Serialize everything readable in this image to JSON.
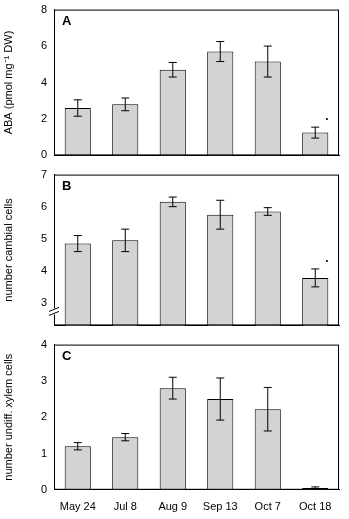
{
  "chart_data": [
    {
      "type": "bar",
      "title": "A",
      "y_label": "ABA (pmol mg⁻¹ DW)",
      "categories": [
        "May 24",
        "Jul 8",
        "Aug 9",
        "Sep 13",
        "Oct 7",
        "Oct 18"
      ],
      "values": [
        2.6,
        2.8,
        4.7,
        5.7,
        5.15,
        1.25
      ],
      "errors": [
        0.45,
        0.35,
        0.4,
        0.55,
        0.85,
        0.3
      ],
      "color": "#d3d3d3",
      "ylim": [
        0,
        8
      ],
      "yticks": [
        0,
        2,
        4,
        6,
        8
      ],
      "grid": false,
      "tick_labels": "y",
      "annotations": [
        {
          "category": "Oct 18",
          "text": "."
        }
      ]
    },
    {
      "type": "bar",
      "title": "B",
      "y_label": "number cambial cells",
      "categories": [
        "May 24",
        "Jul 8",
        "Aug 9",
        "Sep 13",
        "Oct 7",
        "Oct 18"
      ],
      "values": [
        4.85,
        4.95,
        6.15,
        5.75,
        5.85,
        3.78
      ],
      "errors": [
        0.25,
        0.35,
        0.15,
        0.45,
        0.12,
        0.28
      ],
      "color": "#d3d3d3",
      "ylim": [
        2.3,
        7
      ],
      "yticks": [
        3,
        4,
        5,
        6,
        7
      ],
      "grid": false,
      "tick_labels": "y",
      "annotations": [
        {
          "category": "Oct 18",
          "text": "."
        }
      ]
    },
    {
      "type": "bar",
      "title": "C",
      "y_label": "number undiff. xylem cells",
      "categories": [
        "May 24",
        "Jul 8",
        "Aug 9",
        "Sep 13",
        "Oct 7",
        "Oct 18"
      ],
      "values": [
        1.2,
        1.45,
        2.8,
        2.5,
        2.22,
        0.05
      ],
      "errors": [
        0.1,
        0.1,
        0.3,
        0.58,
        0.6,
        0.03
      ],
      "color": "#d3d3d3",
      "ylim": [
        0,
        4
      ],
      "yticks": [
        0,
        1,
        2,
        3,
        4
      ],
      "grid": false
    }
  ]
}
